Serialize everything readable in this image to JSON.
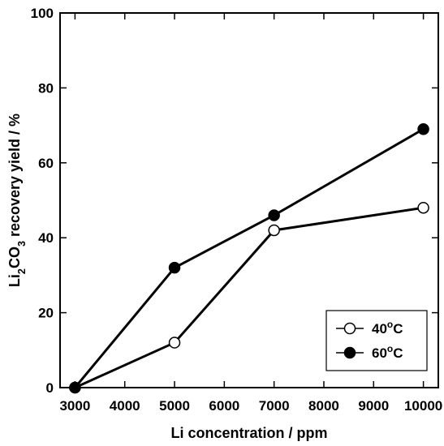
{
  "chart_data": {
    "type": "line",
    "xlabel": "Li concentration / ppm",
    "ylabel": {
      "parts": [
        {
          "text": "Li"
        },
        {
          "text": "2",
          "sub": true
        },
        {
          "text": "CO"
        },
        {
          "text": "3",
          "sub": true
        },
        {
          "text": " recovery yield / %"
        }
      ]
    },
    "xlim": [
      2700,
      10300
    ],
    "ylim": [
      0,
      100
    ],
    "xticks": [
      3000,
      4000,
      5000,
      6000,
      7000,
      8000,
      9000,
      10000
    ],
    "yticks": [
      0,
      20,
      40,
      60,
      80,
      100
    ],
    "grid": false,
    "legend_position": "bottom-right",
    "series": [
      {
        "name": "40°C",
        "label_parts": [
          {
            "text": "40"
          },
          {
            "text": "o",
            "sup": true
          },
          {
            "text": "C"
          }
        ],
        "marker": "open-circle",
        "x": [
          3000,
          5000,
          7000,
          10000
        ],
        "y": [
          0,
          12,
          42,
          48
        ]
      },
      {
        "name": "60°C",
        "label_parts": [
          {
            "text": "60"
          },
          {
            "text": "o",
            "sup": true
          },
          {
            "text": "C"
          }
        ],
        "marker": "filled-circle",
        "x": [
          3000,
          5000,
          7000,
          10000
        ],
        "y": [
          0,
          32,
          46,
          69
        ]
      }
    ]
  }
}
